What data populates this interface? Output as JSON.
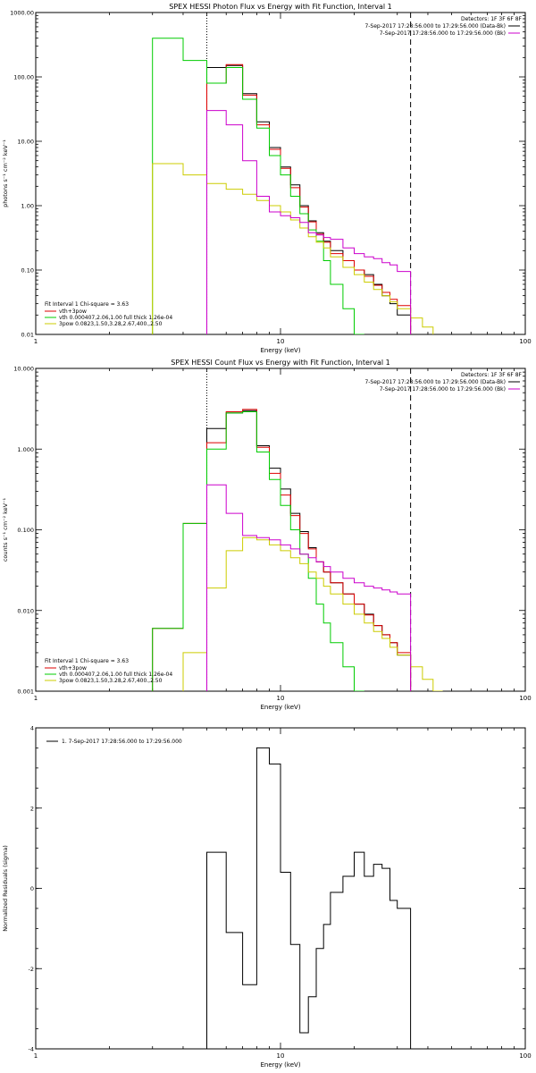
{
  "chart_data": [
    {
      "type": "line",
      "title": "SPEX HESSI Photon Flux vs Energy with Fit Function, Interval 1",
      "xlabel": "Energy (keV)",
      "ylabel": "photons s⁻¹ cm⁻² keV⁻¹",
      "xscale": "log",
      "yscale": "log",
      "xlim": [
        1,
        100
      ],
      "ylim": [
        0.01,
        1000
      ],
      "x_ticks": [
        1,
        10,
        100
      ],
      "x_tick_labels": [
        "1",
        "10",
        "100"
      ],
      "y_ticks": [
        0.01,
        0.1,
        1,
        10,
        100,
        1000
      ],
      "y_tick_labels": [
        "0.01",
        "0.10",
        "1.00",
        "10.00",
        "100.00",
        "1000.00"
      ],
      "grid": false,
      "legend_top": {
        "detectors": "Detectors: 1F 3F 6F 8F",
        "entries": [
          {
            "text": "7-Sep-2017 17:28:56.000 to 17:29:56.000 (Data-Bk)",
            "color": "#000000"
          },
          {
            "text": "7-Sep-2017 17:28:56.000 to 17:29:56.000 (Bk)",
            "color": "#cc00cc"
          }
        ]
      },
      "legend_bottom": {
        "header": "Fit Interval 1   Chi-square = 3.63",
        "entries": [
          {
            "text": "vth+3pow",
            "color": "#dd0000"
          },
          {
            "text": "vth 0.000407,2.06,1.00  full thick 1.26e-04",
            "color": "#00cc00"
          },
          {
            "text": "3pow 0.0823,1.50,3.28,2.67,400.,2.50",
            "color": "#cccc00"
          }
        ]
      },
      "vlines": [
        {
          "x": 5.0,
          "style": "dotted",
          "color": "#000000"
        },
        {
          "x": 34.0,
          "style": "dashed",
          "color": "#000000"
        }
      ],
      "series": [
        {
          "color": "#000000",
          "edges": [
            5.0,
            6.0,
            7.0,
            8.0,
            9.0,
            10.0,
            11.0,
            12.0,
            13.0,
            14.0,
            15.0,
            16.0,
            18.0,
            20.0,
            22.0,
            24.0,
            26.0,
            28.0,
            30.0,
            34.0
          ],
          "values": [
            140,
            150,
            55,
            20,
            8.0,
            4.0,
            2.1,
            1.0,
            0.58,
            0.38,
            0.28,
            0.2,
            0.14,
            0.1,
            0.085,
            0.06,
            0.04,
            0.03,
            0.02
          ]
        },
        {
          "color": "#dd0000",
          "edges": [
            5.0,
            6.0,
            7.0,
            8.0,
            9.0,
            10.0,
            11.0,
            12.0,
            13.0,
            14.0,
            15.0,
            16.0,
            18.0,
            20.0,
            22.0,
            24.0,
            26.0,
            28.0,
            30.0,
            34.0
          ],
          "values": [
            80,
            155,
            52,
            18,
            7.5,
            3.8,
            1.9,
            0.95,
            0.56,
            0.36,
            0.27,
            0.18,
            0.14,
            0.1,
            0.08,
            0.058,
            0.045,
            0.035,
            0.028
          ]
        },
        {
          "color": "#00cc00",
          "edges": [
            3.0,
            4.0,
            5.0,
            6.0,
            7.0,
            8.0,
            9.0,
            10.0,
            11.0,
            12.0,
            13.0,
            14.0,
            15.0,
            16.0,
            18.0,
            20.0,
            22.0
          ],
          "values": [
            400,
            180,
            80,
            140,
            45,
            16,
            6.0,
            3.0,
            1.4,
            0.75,
            0.42,
            0.28,
            0.14,
            0.06,
            0.025,
            0.01
          ]
        },
        {
          "color": "#cccc00",
          "edges": [
            3.0,
            4.0,
            5.0,
            6.0,
            7.0,
            8.0,
            9.0,
            10.0,
            11.0,
            12.0,
            13.0,
            14.0,
            15.0,
            16.0,
            18.0,
            20.0,
            22.0,
            24.0,
            26.0,
            28.0,
            30.0,
            34.0,
            38.0,
            42.0
          ],
          "values": [
            4.5,
            3.0,
            2.2,
            1.8,
            1.5,
            1.2,
            1.0,
            0.8,
            0.6,
            0.45,
            0.33,
            0.27,
            0.22,
            0.16,
            0.11,
            0.085,
            0.065,
            0.05,
            0.04,
            0.032,
            0.025,
            0.018,
            0.013
          ]
        },
        {
          "color": "#cc00cc",
          "edges": [
            5.0,
            6.0,
            7.0,
            8.0,
            9.0,
            10.0,
            11.0,
            12.0,
            13.0,
            14.0,
            15.0,
            16.0,
            18.0,
            20.0,
            22.0,
            24.0,
            26.0,
            28.0,
            30.0,
            34.0
          ],
          "values": [
            30,
            18,
            5.0,
            1.4,
            0.8,
            0.7,
            0.65,
            0.55,
            0.38,
            0.35,
            0.32,
            0.3,
            0.22,
            0.18,
            0.16,
            0.15,
            0.13,
            0.12,
            0.095
          ]
        }
      ]
    },
    {
      "type": "line",
      "title": "SPEX HESSI Count Flux vs Energy with Fit Function, Interval 1",
      "xlabel": "Energy (keV)",
      "ylabel": "counts s⁻¹ cm⁻² keV⁻¹",
      "xscale": "log",
      "yscale": "log",
      "xlim": [
        1,
        100
      ],
      "ylim": [
        0.001,
        10
      ],
      "x_ticks": [
        1,
        10,
        100
      ],
      "x_tick_labels": [
        "1",
        "10",
        "100"
      ],
      "y_ticks": [
        0.001,
        0.01,
        0.1,
        1,
        10
      ],
      "y_tick_labels": [
        "0.001",
        "0.010",
        "0.100",
        "1.000",
        "10.000"
      ],
      "grid": false,
      "legend_top": {
        "detectors": "Detectors: 1F 3F 6F 8F",
        "entries": [
          {
            "text": "7-Sep-2017 17:28:56.000 to 17:29:56.000 (Data-Bk)",
            "color": "#000000"
          },
          {
            "text": "7-Sep-2017 17:28:56.000 to 17:29:56.000 (Bk)",
            "color": "#cc00cc"
          }
        ]
      },
      "legend_bottom": {
        "header": "Fit Interval 1   Chi-square = 3.63",
        "entries": [
          {
            "text": "vth+3pow",
            "color": "#dd0000"
          },
          {
            "text": "vth 0.000407,2.06,1.00  full thick 1.26e-04",
            "color": "#00cc00"
          },
          {
            "text": "3pow 0.0823,1.50,3.28,2.67,400.,2.50",
            "color": "#cccc00"
          }
        ]
      },
      "vlines": [
        {
          "x": 5.0,
          "style": "dotted",
          "color": "#000000"
        },
        {
          "x": 34.0,
          "style": "dashed",
          "color": "#000000"
        }
      ],
      "series": [
        {
          "color": "#000000",
          "edges": [
            5.0,
            6.0,
            7.0,
            8.0,
            9.0,
            10.0,
            11.0,
            12.0,
            13.0,
            14.0,
            15.0,
            16.0,
            18.0,
            20.0,
            22.0,
            24.0,
            26.0,
            28.0,
            30.0,
            34.0
          ],
          "values": [
            1.8,
            2.8,
            3.0,
            1.1,
            0.58,
            0.32,
            0.16,
            0.095,
            0.06,
            0.04,
            0.03,
            0.022,
            0.016,
            0.012,
            0.009,
            0.0065,
            0.005,
            0.004,
            0.0028
          ]
        },
        {
          "color": "#dd0000",
          "edges": [
            3.0,
            4.0,
            5.0,
            6.0,
            7.0,
            8.0,
            9.0,
            10.0,
            11.0,
            12.0,
            13.0,
            14.0,
            15.0,
            16.0,
            18.0,
            20.0,
            22.0,
            24.0,
            26.0,
            28.0,
            30.0,
            34.0
          ],
          "values": [
            0.006,
            0.12,
            1.2,
            2.9,
            3.1,
            1.05,
            0.5,
            0.27,
            0.15,
            0.09,
            0.058,
            0.04,
            0.03,
            0.022,
            0.016,
            0.012,
            0.0088,
            0.0065,
            0.005,
            0.004,
            0.003
          ]
        },
        {
          "color": "#00cc00",
          "edges": [
            3.0,
            4.0,
            5.0,
            6.0,
            7.0,
            8.0,
            9.0,
            10.0,
            11.0,
            12.0,
            13.0,
            14.0,
            15.0,
            16.0,
            18.0,
            20.0,
            22.0
          ],
          "values": [
            0.006,
            0.12,
            1.0,
            2.8,
            2.9,
            0.92,
            0.42,
            0.2,
            0.1,
            0.05,
            0.025,
            0.012,
            0.007,
            0.004,
            0.002,
            0.001
          ]
        },
        {
          "color": "#cccc00",
          "edges": [
            4.0,
            5.0,
            6.0,
            7.0,
            8.0,
            9.0,
            10.0,
            11.0,
            12.0,
            13.0,
            14.0,
            15.0,
            16.0,
            18.0,
            20.0,
            22.0,
            24.0,
            26.0,
            28.0,
            30.0,
            34.0,
            38.0,
            42.0,
            46.0
          ],
          "values": [
            0.003,
            0.019,
            0.055,
            0.08,
            0.075,
            0.065,
            0.055,
            0.045,
            0.038,
            0.03,
            0.025,
            0.02,
            0.016,
            0.012,
            0.009,
            0.007,
            0.0055,
            0.0045,
            0.0035,
            0.0028,
            0.002,
            0.0014,
            0.001
          ]
        },
        {
          "color": "#cc00cc",
          "edges": [
            5.0,
            6.0,
            7.0,
            8.0,
            9.0,
            10.0,
            11.0,
            12.0,
            13.0,
            14.0,
            15.0,
            16.0,
            18.0,
            20.0,
            22.0,
            24.0,
            26.0,
            28.0,
            30.0,
            34.0
          ],
          "values": [
            0.36,
            0.16,
            0.085,
            0.08,
            0.075,
            0.065,
            0.058,
            0.05,
            0.045,
            0.04,
            0.035,
            0.03,
            0.025,
            0.022,
            0.02,
            0.019,
            0.018,
            0.017,
            0.016
          ]
        }
      ]
    },
    {
      "type": "line",
      "title": "",
      "xlabel": "Energy (keV)",
      "ylabel": "Normalized Residuals (sigma)",
      "xscale": "log",
      "yscale": "linear",
      "xlim": [
        1,
        100
      ],
      "ylim": [
        -4,
        4
      ],
      "x_ticks": [
        1,
        10,
        100
      ],
      "x_tick_labels": [
        "1",
        "10",
        "100"
      ],
      "y_ticks": [
        -4,
        -2,
        0,
        2,
        4
      ],
      "y_tick_labels": [
        "-4",
        "-2",
        "0",
        "2",
        "4"
      ],
      "grid": false,
      "legend_top_left": {
        "entries": [
          {
            "text": "1.  7-Sep-2017 17:28:56.000 to 17:29:56.000",
            "color": "#000000"
          }
        ]
      },
      "series": [
        {
          "color": "#000000",
          "edges": [
            5.0,
            6.0,
            7.0,
            8.0,
            9.0,
            10.0,
            11.0,
            12.0,
            13.0,
            14.0,
            15.0,
            16.0,
            18.0,
            20.0,
            22.0,
            24.0,
            26.0,
            28.0,
            30.0,
            34.0
          ],
          "values": [
            0.9,
            -1.1,
            -2.4,
            3.5,
            3.1,
            0.4,
            -1.4,
            -3.6,
            -2.7,
            -1.5,
            -0.9,
            -0.1,
            0.3,
            0.9,
            0.3,
            0.6,
            0.5,
            -0.3,
            -0.5
          ]
        }
      ]
    }
  ]
}
